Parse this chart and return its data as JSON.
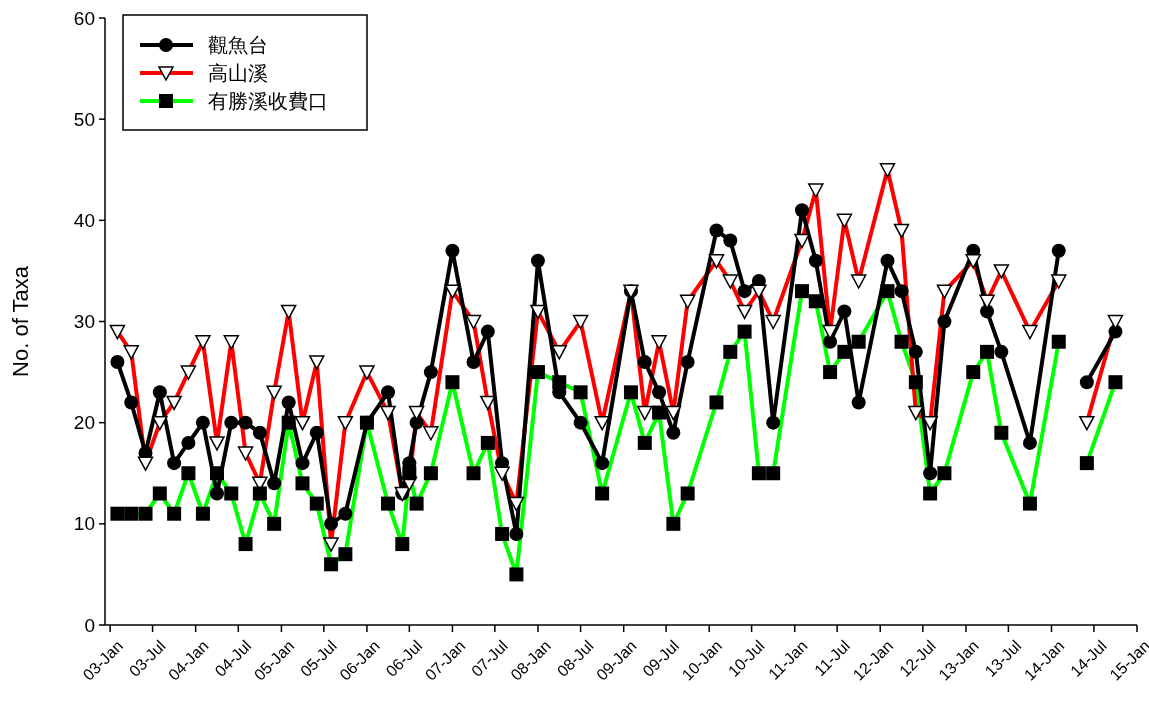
{
  "chart_data": {
    "type": "line",
    "ylabel": "No. of Taxa",
    "legend": "top left",
    "grid": false,
    "line_style": "solid",
    "x": [
      "2003-02",
      "2003-04",
      "2003-06",
      "2003-08",
      "2003-10",
      "2003-12",
      "2004-02",
      "2004-04",
      "2004-06",
      "2004-08",
      "2004-10",
      "2004-12",
      "2005-02",
      "2005-04",
      "2005-06",
      "2005-08",
      "2005-10",
      "2006-01",
      "2006-04",
      "2006-06",
      "2006-07",
      "2006-08",
      "2006-10",
      "2007-01",
      "2007-04",
      "2007-06",
      "2007-08",
      "2007-10",
      "2008-01",
      "2008-04",
      "2008-07",
      "2008-10",
      "2009-02",
      "2009-04",
      "2009-06",
      "2009-08",
      "2009-10",
      "2010-02",
      "2010-04",
      "2010-06",
      "2010-08",
      "2010-10",
      "2011-02",
      "2011-04",
      "2011-06",
      "2011-08",
      "2011-10",
      "2012-02",
      "2012-04",
      "2012-06",
      "2012-08",
      "2012-10",
      "2013-02",
      "2013-04",
      "2013-06",
      "2013-10",
      "2014-02",
      "2014-04",
      "2014-06",
      "2014-10"
    ],
    "series": [
      {
        "name": "觀魚台",
        "color": "#000000",
        "marker": "circle",
        "values": [
          26,
          22,
          17,
          23,
          16,
          18,
          20,
          13,
          20,
          20,
          19,
          14,
          22,
          16,
          19,
          10,
          11,
          20,
          23,
          13,
          16,
          20,
          25,
          37,
          26,
          29,
          16,
          9,
          36,
          23,
          20,
          16,
          33,
          26,
          23,
          19,
          26,
          39,
          38,
          33,
          34,
          20,
          41,
          36,
          28,
          31,
          22,
          36,
          33,
          27,
          15,
          30,
          37,
          31,
          27,
          18,
          37,
          null,
          24,
          29
        ]
      },
      {
        "name": "高山溪",
        "color": "#ff0000",
        "marker": "triangle",
        "values": [
          29,
          27,
          16,
          20,
          22,
          25,
          28,
          18,
          28,
          17,
          14,
          23,
          31,
          20,
          26,
          8,
          20,
          25,
          21,
          13,
          14,
          21,
          19,
          33,
          30,
          22,
          15,
          12,
          31,
          27,
          30,
          20,
          33,
          21,
          28,
          21,
          32,
          36,
          34,
          31,
          33,
          30,
          38,
          43,
          29,
          40,
          34,
          45,
          39,
          21,
          20,
          33,
          36,
          32,
          35,
          29,
          34,
          null,
          20,
          30
        ]
      },
      {
        "name": "有勝溪收費口",
        "color": "#00ff00",
        "marker": "square",
        "values": [
          11,
          11,
          11,
          13,
          11,
          15,
          11,
          15,
          13,
          8,
          13,
          10,
          20,
          14,
          12,
          6,
          7,
          20,
          12,
          8,
          15,
          12,
          15,
          24,
          15,
          18,
          9,
          5,
          25,
          24,
          23,
          13,
          23,
          18,
          21,
          10,
          13,
          22,
          27,
          29,
          15,
          15,
          33,
          32,
          25,
          27,
          28,
          33,
          28,
          24,
          13,
          15,
          25,
          27,
          19,
          12,
          28,
          null,
          16,
          24
        ]
      }
    ],
    "xlim": [
      "2002-12-10",
      "2015-01-01"
    ],
    "xticks": [
      {
        "value": "2003-01-01",
        "label": "03-Jan"
      },
      {
        "value": "2003-07-01",
        "label": "03-Jul"
      },
      {
        "value": "2004-01-01",
        "label": "04-Jan"
      },
      {
        "value": "2004-07-01",
        "label": "04-Jul"
      },
      {
        "value": "2005-01-01",
        "label": "05-Jan"
      },
      {
        "value": "2005-07-01",
        "label": "05-Jul"
      },
      {
        "value": "2006-01-01",
        "label": "06-Jan"
      },
      {
        "value": "2006-07-01",
        "label": "06-Jul"
      },
      {
        "value": "2007-01-01",
        "label": "07-Jan"
      },
      {
        "value": "2007-07-01",
        "label": "07-Jul"
      },
      {
        "value": "2008-01-01",
        "label": "08-Jan"
      },
      {
        "value": "2008-07-01",
        "label": "08-Jul"
      },
      {
        "value": "2009-01-01",
        "label": "09-Jan"
      },
      {
        "value": "2009-07-01",
        "label": "09-Jul"
      },
      {
        "value": "2010-01-01",
        "label": "10-Jan"
      },
      {
        "value": "2010-07-01",
        "label": "10-Jul"
      },
      {
        "value": "2011-01-01",
        "label": "11-Jan"
      },
      {
        "value": "2011-07-01",
        "label": "11-Jul"
      },
      {
        "value": "2012-01-01",
        "label": "12-Jan"
      },
      {
        "value": "2012-07-01",
        "label": "12-Jul"
      },
      {
        "value": "2013-01-01",
        "label": "13-Jan"
      },
      {
        "value": "2013-07-01",
        "label": "13-Jul"
      },
      {
        "value": "2014-01-01",
        "label": "14-Jan"
      },
      {
        "value": "2014-07-01",
        "label": "14-Jul"
      },
      {
        "value": "2015-01-01",
        "label": "15-Jan"
      }
    ],
    "ylim": [
      0,
      60
    ],
    "yticks": [
      0,
      10,
      20,
      30,
      40,
      50,
      60
    ]
  }
}
